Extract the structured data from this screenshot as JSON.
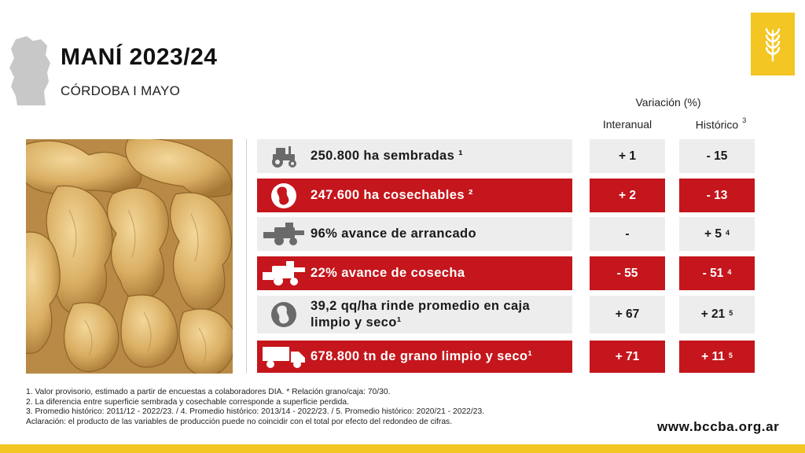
{
  "header": {
    "title": "MANÍ 2023/24",
    "subtitle": "CÓRDOBA I MAYO"
  },
  "table_header": {
    "variation_title": "Variación (%)",
    "col_interanual": "Interanual",
    "col_historico": "Histórico",
    "col_historico_ref": "3"
  },
  "rows": [
    {
      "icon": "tractor-icon",
      "style": "grey",
      "label": "250.800 ha sembradas ¹",
      "interanual": "+ 1",
      "historico": "- 15",
      "historico_ref": ""
    },
    {
      "icon": "peanut-icon",
      "style": "red",
      "label": "247.600 ha cosechables ²",
      "interanual": "+ 2",
      "historico": "- 13",
      "historico_ref": ""
    },
    {
      "icon": "harvester-icon",
      "style": "grey",
      "label": "96% avance de arrancado",
      "interanual": "-",
      "historico": "+ 5",
      "historico_ref": "4"
    },
    {
      "icon": "combine-icon",
      "style": "red",
      "label": "22% avance de cosecha",
      "interanual": "- 55",
      "historico": "- 51",
      "historico_ref": "4"
    },
    {
      "icon": "peanut-icon",
      "style": "grey",
      "label": "39,2 qq/ha rinde promedio en caja limpio y seco¹",
      "interanual": "+ 67",
      "historico": "+ 21",
      "historico_ref": "5"
    },
    {
      "icon": "truck-icon",
      "style": "red",
      "label": "678.800 tn de grano limpio y seco¹",
      "interanual": "+ 71",
      "historico": "+ 11",
      "historico_ref": "5"
    }
  ],
  "footnotes": [
    "1. Valor provisorio, estimado a partir de encuestas a colaboradores DIA. * Relación grano/caja: 70/30.",
    "2. La diferencia entre superficie sembrada y cosechable corresponde a superficie perdida.",
    "3. Promedio histórico: 2011/12 - 2022/23. / 4. Promedio histórico: 2013/14 - 2022/23. / 5. Promedio histórico: 2020/21 - 2022/23.",
    "Aclaración: el producto de las variables de producción puede no coincidir con el total por efecto del redondeo de cifras."
  ],
  "footer": {
    "url": "www.bccba.org.ar"
  },
  "colors": {
    "red": "#c4161c",
    "grey": "#ededed",
    "yellow": "#f3c623"
  },
  "icons": {
    "logo": "wheat-icon",
    "map": "cordoba-map-icon",
    "photo": "peanuts-photo"
  }
}
